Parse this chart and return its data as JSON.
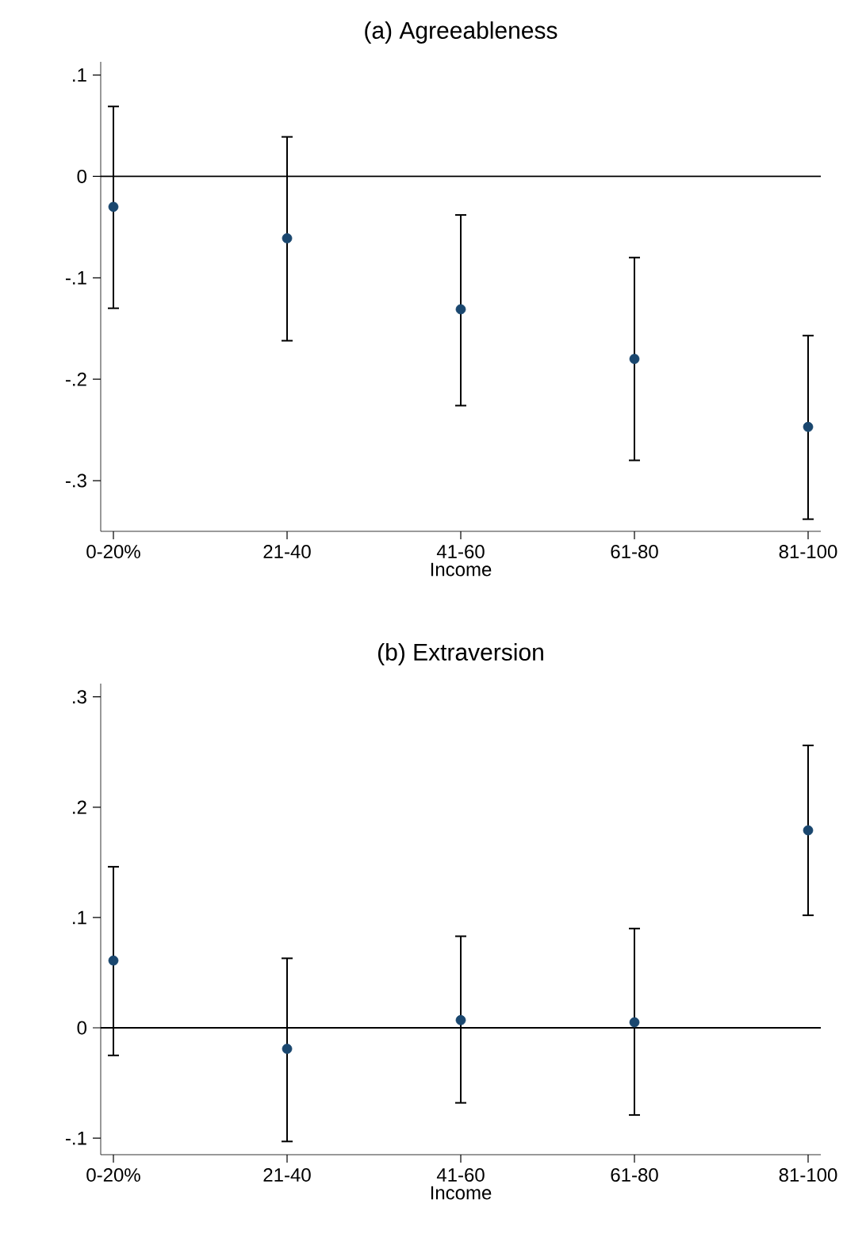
{
  "chart_data": [
    {
      "type": "scatter",
      "title": "(a) Agreeableness",
      "xlabel": "Income",
      "categories": [
        "0-20%",
        "21-40",
        "41-60",
        "61-80",
        "81-100"
      ],
      "values": [
        -0.03,
        -0.061,
        -0.131,
        -0.18,
        -0.247
      ],
      "errors": [
        [
          -0.13,
          0.069
        ],
        [
          -0.162,
          0.039
        ],
        [
          -0.226,
          -0.038
        ],
        [
          -0.28,
          -0.08
        ],
        [
          -0.338,
          -0.157
        ]
      ],
      "color": "#1a476f",
      "marker": "circle",
      "ylim": [
        -0.35,
        0.113
      ],
      "yticks": [
        {
          "value": -0.3,
          "label": "-.3"
        },
        {
          "value": -0.2,
          "label": "-.2"
        },
        {
          "value": -0.1,
          "label": "-.1"
        },
        0,
        {
          "value": 0.1,
          "label": ".1"
        }
      ],
      "grid": false,
      "ref_lines": [
        {
          "axis": "y",
          "value": 0
        }
      ]
    },
    {
      "type": "scatter",
      "title": "(b) Extraversion",
      "xlabel": "Income",
      "categories": [
        "0-20%",
        "21-40",
        "41-60",
        "61-80",
        "81-100"
      ],
      "values": [
        0.061,
        -0.019,
        0.007,
        0.005,
        0.179
      ],
      "errors": [
        [
          -0.025,
          0.146
        ],
        [
          -0.103,
          0.063
        ],
        [
          -0.068,
          0.083
        ],
        [
          -0.079,
          0.09
        ],
        [
          0.102,
          0.256
        ]
      ],
      "color": "#1a476f",
      "marker": "circle",
      "ylim": [
        -0.115,
        0.312
      ],
      "yticks": [
        {
          "value": -0.1,
          "label": "-.1"
        },
        0,
        {
          "value": 0.1,
          "label": ".1"
        },
        {
          "value": 0.2,
          "label": ".2"
        },
        {
          "value": 0.3,
          "label": ".3"
        }
      ],
      "grid": false,
      "ref_lines": [
        {
          "axis": "y",
          "value": 0
        }
      ]
    }
  ]
}
